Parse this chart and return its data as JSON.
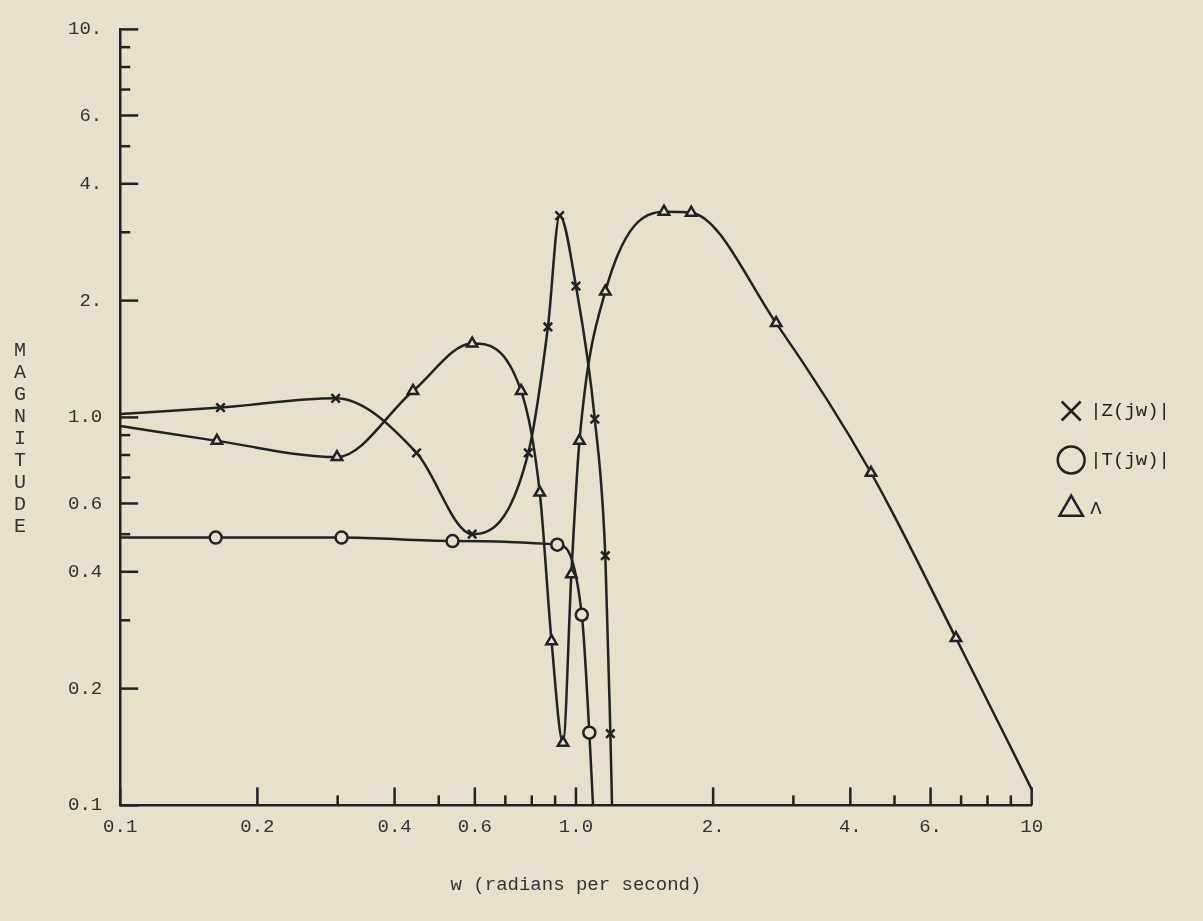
{
  "chart_data": {
    "type": "line",
    "xlabel": "w (radians per second)",
    "ylabel": "MAGNITUDE",
    "log": "xy",
    "legend": "right",
    "grid": false,
    "line_style": "solid",
    "xlim": [
      0.1,
      10
    ],
    "ylim": [
      0.1,
      10
    ],
    "xticks": [
      {
        "value": 0.1,
        "label": "0.1"
      },
      0.2,
      {
        "value": 0.3,
        "label": null
      },
      0.4,
      {
        "value": 0.5,
        "label": null
      },
      0.6,
      {
        "value": 0.7,
        "label": null
      },
      {
        "value": 0.8,
        "label": null
      },
      {
        "value": 0.9,
        "label": null
      },
      {
        "value": 1,
        "label": "1.0"
      },
      {
        "value": 2,
        "label": "2."
      },
      {
        "value": 3,
        "label": null
      },
      {
        "value": 4,
        "label": "4."
      },
      {
        "value": 5,
        "label": null
      },
      {
        "value": 6,
        "label": "6."
      },
      {
        "value": 7,
        "label": null
      },
      {
        "value": 8,
        "label": null
      },
      {
        "value": 9,
        "label": null
      },
      10
    ],
    "yticks": [
      {
        "value": 0.1,
        "label": "0.1"
      },
      0.2,
      {
        "value": 0.3,
        "label": null
      },
      0.4,
      {
        "value": 0.5,
        "label": null
      },
      0.6,
      {
        "value": 0.7,
        "label": null
      },
      {
        "value": 0.8,
        "label": null
      },
      {
        "value": 0.9,
        "label": null
      },
      {
        "value": 1,
        "label": "1.0"
      },
      {
        "value": 2,
        "label": "2."
      },
      {
        "value": 3,
        "label": null
      },
      {
        "value": 4,
        "label": "4."
      },
      {
        "value": 5,
        "label": null
      },
      {
        "value": 6,
        "label": "6."
      },
      {
        "value": 7,
        "label": null
      },
      {
        "value": 8,
        "label": null
      },
      {
        "value": 9,
        "label": null
      },
      {
        "value": 10,
        "label": "10."
      }
    ],
    "series": [
      {
        "name": "|Z(jw)|",
        "color": "#222222",
        "marker": "cross",
        "x": [
          0.1,
          0.166,
          0.297,
          0.447,
          0.592,
          0.786,
          0.868,
          0.921,
          1.0,
          1.1,
          1.16,
          1.19,
          1.2
        ],
        "values": [
          1.02,
          1.06,
          1.12,
          0.81,
          0.5,
          0.81,
          1.71,
          3.31,
          2.18,
          0.99,
          0.44,
          0.153,
          0.1
        ]
      },
      {
        "name": "|T(jw)|",
        "color": "#222222",
        "marker": "circle",
        "x": [
          0.1,
          0.162,
          0.306,
          0.536,
          0.91,
          1.03,
          1.07,
          1.09
        ],
        "values": [
          0.49,
          0.49,
          0.49,
          0.48,
          0.47,
          0.31,
          0.154,
          0.1
        ]
      },
      {
        "name": "Λ",
        "color": "#222222",
        "marker": "triangle",
        "x": [
          0.1,
          0.163,
          0.299,
          0.439,
          0.592,
          0.758,
          0.833,
          0.884,
          0.937,
          0.977,
          1.018,
          1.16,
          1.56,
          1.79,
          2.75,
          4.44,
          6.82,
          10
        ],
        "values": [
          0.95,
          0.87,
          0.79,
          1.17,
          1.55,
          1.17,
          0.64,
          0.265,
          0.145,
          0.394,
          0.87,
          2.11,
          3.39,
          3.37,
          1.75,
          0.72,
          0.27,
          0.11
        ]
      }
    ]
  }
}
